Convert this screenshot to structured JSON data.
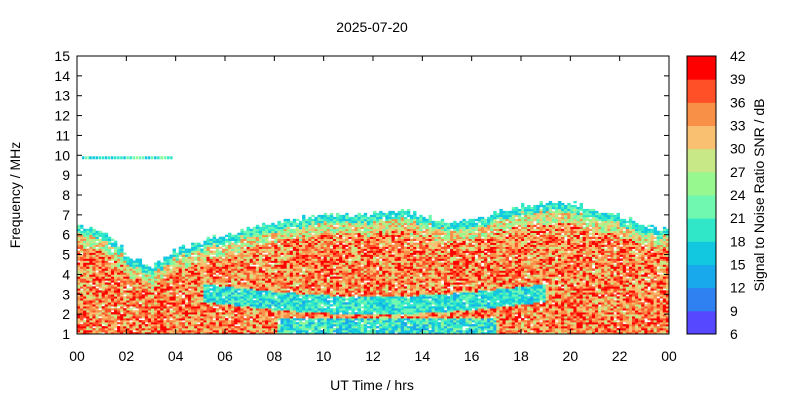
{
  "chart_data": {
    "type": "heatmap",
    "title": "2025-07-20",
    "xlabel": "UT Time / hrs",
    "ylabel": "Frequency / MHz",
    "xlim": [
      0,
      24
    ],
    "ylim": [
      1,
      15
    ],
    "x_ticks": [
      "00",
      "02",
      "04",
      "06",
      "08",
      "10",
      "12",
      "14",
      "16",
      "18",
      "20",
      "22",
      "00"
    ],
    "y_ticks": [
      1,
      2,
      3,
      4,
      5,
      6,
      7,
      8,
      9,
      10,
      11,
      12,
      13,
      14,
      15
    ],
    "colorbar": {
      "label": "Signal to Noise Ratio SNR / dB",
      "ticks": [
        6,
        9,
        12,
        15,
        18,
        21,
        24,
        27,
        30,
        33,
        36,
        39,
        42
      ],
      "range": [
        6,
        42
      ],
      "colors": [
        "#7F00FF",
        "#5548FF",
        "#2F80F0",
        "#18A8EC",
        "#12C8E0",
        "#30E8C8",
        "#70F8B0",
        "#98F890",
        "#C8E888",
        "#F8C070",
        "#F89048",
        "#FF5028",
        "#FF0000"
      ]
    },
    "grid": false,
    "upper_envelope_mhz": {
      "hours": [
        0,
        1,
        2,
        3,
        4,
        5,
        6,
        7,
        8,
        9,
        10,
        11,
        12,
        13,
        14,
        15,
        16,
        17,
        18,
        19,
        20,
        21,
        22,
        23,
        24
      ],
      "values": [
        6.4,
        6.1,
        5.0,
        4.3,
        5.2,
        5.6,
        6.0,
        6.3,
        6.5,
        6.8,
        7.0,
        6.9,
        7.0,
        7.2,
        6.9,
        6.6,
        6.7,
        7.1,
        7.4,
        7.6,
        7.5,
        7.2,
        6.9,
        6.4,
        6.2
      ]
    },
    "sporadic_layer_mhz": {
      "hours": [
        0.2,
        0.5,
        1.0,
        1.5,
        2.0,
        2.5,
        3.0,
        3.4,
        3.8
      ],
      "values": [
        9.9,
        9.9,
        9.9,
        9.9,
        9.9,
        9.9,
        9.9,
        9.9,
        9.9
      ]
    }
  }
}
